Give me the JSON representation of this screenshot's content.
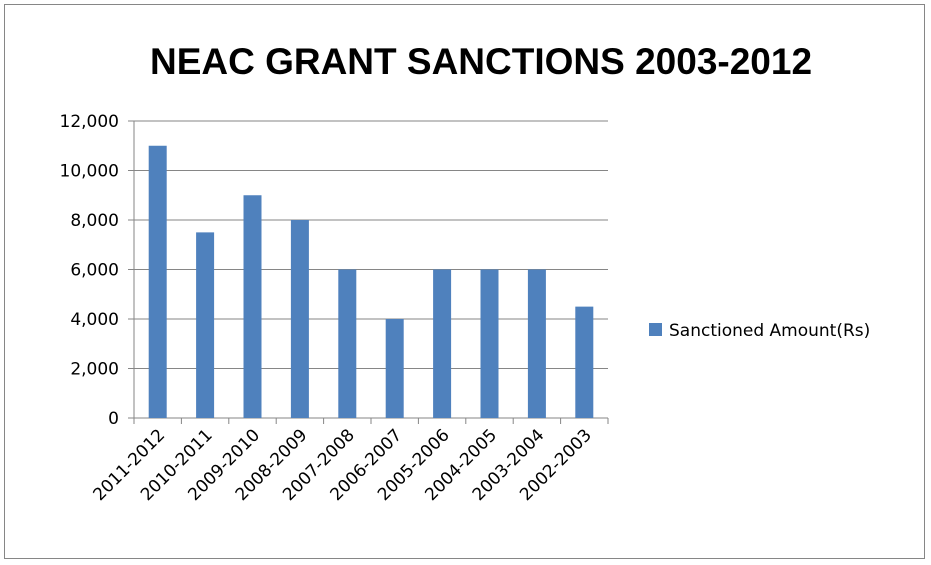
{
  "chart_data": {
    "type": "bar",
    "title": "NEAC GRANT SANCTIONS 2003-2012",
    "xlabel": "",
    "ylabel": "",
    "categories": [
      "2011-2012",
      "2010-2011",
      "2009-2010",
      "2008-2009",
      "2007-2008",
      "2006-2007",
      "2005-2006",
      "2004-2005",
      "2003-2004",
      "2002-2003"
    ],
    "series": [
      {
        "name": "Sanctioned Amount(Rs)",
        "color": "#4f81bd",
        "values": [
          11000,
          7500,
          9000,
          8000,
          6000,
          4000,
          6000,
          6000,
          6000,
          4500
        ]
      }
    ],
    "ylim": [
      0,
      12000
    ],
    "yticks": [
      0,
      2000,
      4000,
      6000,
      8000,
      10000,
      12000
    ],
    "ytick_labels": [
      "0",
      "2,000",
      "4,000",
      "6,000",
      "8,000",
      "10,000",
      "12,000"
    ],
    "grid": "horizontal",
    "legend_position": "right"
  }
}
